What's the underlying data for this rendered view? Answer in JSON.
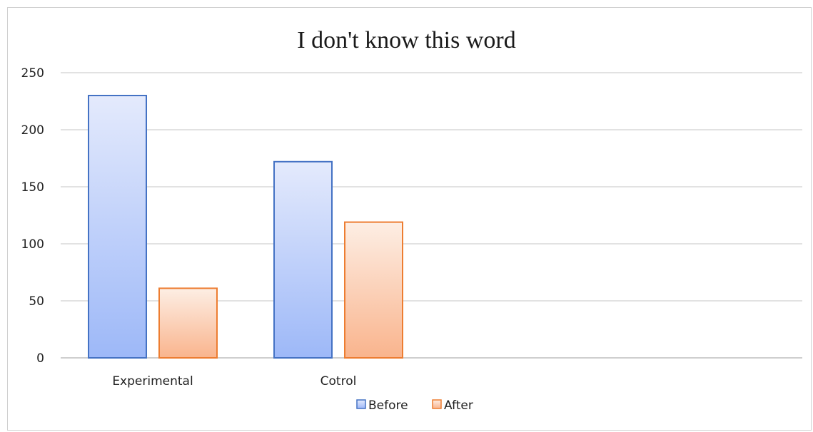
{
  "chart_data": {
    "type": "bar",
    "title": "I don't know this word",
    "xlabel": "",
    "ylabel": "",
    "categories": [
      "Experimental",
      "Cotrol"
    ],
    "series": [
      {
        "name": "Before",
        "values": [
          230,
          172
        ],
        "color": "#4472c4",
        "fill_top": "#e4eafc",
        "fill_bottom": "#9db8f8"
      },
      {
        "name": "After",
        "values": [
          61,
          119
        ],
        "color": "#ed7d31",
        "fill_top": "#fdeee4",
        "fill_bottom": "#f9b48d"
      }
    ],
    "ylim": [
      0,
      250
    ],
    "yticks": [
      "0",
      "50",
      "100",
      "150",
      "200",
      "250"
    ],
    "grid": true,
    "legend_position": "bottom"
  }
}
